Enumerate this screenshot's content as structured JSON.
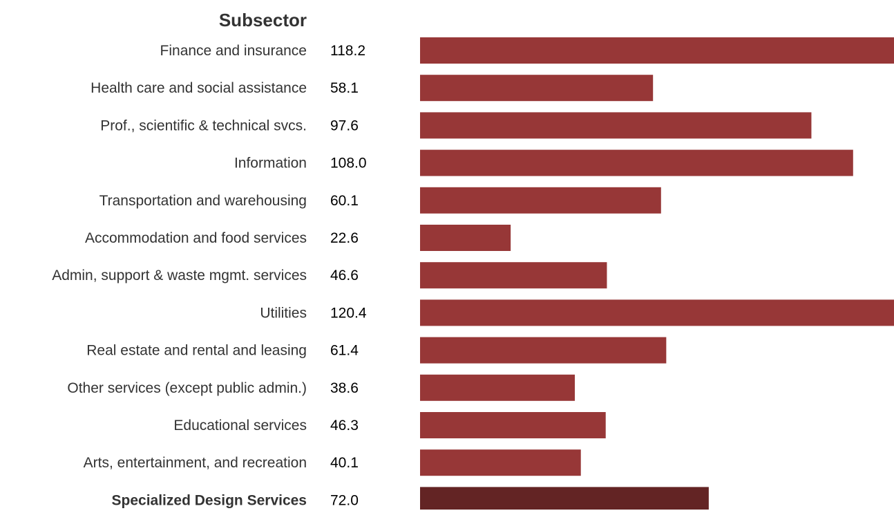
{
  "chart_data": {
    "type": "bar",
    "orientation": "horizontal",
    "column_header": "Subsector",
    "categories": [
      "Finance and insurance",
      "Health care and social assistance",
      "Prof., scientific & technical svcs.",
      "Information",
      "Transportation and warehousing",
      "Accommodation and food services",
      "Admin, support & waste mgmt. services",
      "Utilities",
      "Real estate and rental and leasing",
      "Other services (except public admin.)",
      "Educational services",
      "Arts, entertainment, and recreation",
      "Specialized Design Services"
    ],
    "values": [
      118.2,
      58.1,
      97.6,
      108.0,
      60.1,
      22.6,
      46.6,
      120.4,
      61.4,
      38.6,
      46.3,
      40.1,
      72.0
    ],
    "value_labels": [
      "118.2",
      "58.1",
      "97.6",
      "108.0",
      "60.1",
      "22.6",
      "46.6",
      "120.4",
      "61.4",
      "38.6",
      "46.3",
      "40.1",
      "72.0"
    ],
    "highlight_index": 12,
    "xlim": [
      0,
      118.2
    ],
    "grid": false,
    "colors": {
      "bar": "#973737",
      "highlight_bar": "#632424"
    }
  }
}
